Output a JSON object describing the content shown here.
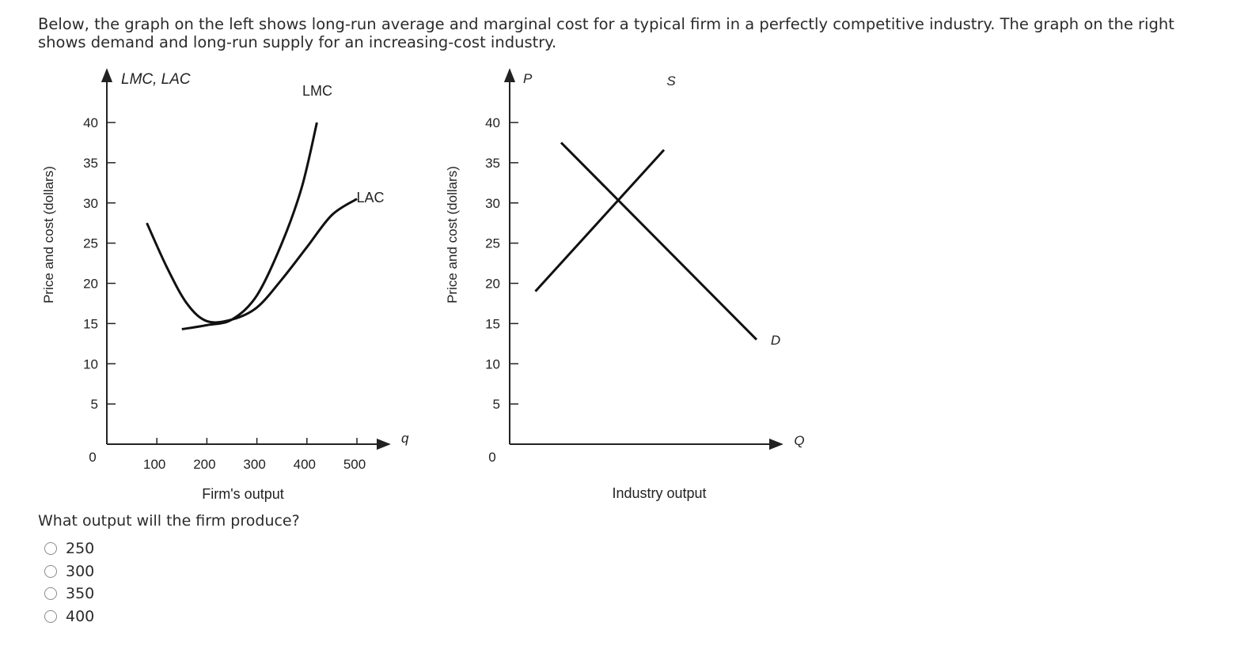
{
  "question": {
    "intro": "Below, the graph on the left shows long-run average and marginal cost for a typical firm in a perfectly competitive industry. The graph on the right shows demand and long-run supply for an increasing-cost industry.",
    "prompt": "What output will the firm produce?",
    "options": [
      "250",
      "300",
      "350",
      "400"
    ]
  },
  "chart_data": [
    {
      "type": "line",
      "y_axis_top_label": "LMC, LAC",
      "ylabel": "Price and cost (dollars)",
      "xlabel": "Firm's output",
      "x_axis_end_label": "q",
      "origin_label": "0",
      "x_ticks": [
        100,
        200,
        300,
        400,
        500
      ],
      "y_ticks": [
        5,
        10,
        15,
        20,
        25,
        30,
        35,
        40
      ],
      "series": [
        {
          "name": "LMC",
          "points": [
            [
              150,
              14.3
            ],
            [
              200,
              14.8
            ],
            [
              250,
              15.5
            ],
            [
              300,
              18.5
            ],
            [
              350,
              25
            ],
            [
              390,
              32
            ],
            [
              420,
              40
            ]
          ]
        },
        {
          "name": "LAC",
          "points": [
            [
              80,
              27.5
            ],
            [
              120,
              22
            ],
            [
              160,
              17.5
            ],
            [
              200,
              15.3
            ],
            [
              250,
              15.5
            ],
            [
              300,
              17
            ],
            [
              350,
              20.5
            ],
            [
              400,
              24.5
            ],
            [
              450,
              28.5
            ],
            [
              500,
              30.5
            ]
          ]
        }
      ]
    },
    {
      "type": "line",
      "y_axis_top_label": "P",
      "ylabel": "Price and cost (dollars)",
      "xlabel": "Industry output",
      "x_axis_end_label": "Q",
      "origin_label": "0",
      "y_ticks": [
        5,
        10,
        15,
        20,
        25,
        30,
        35,
        40
      ],
      "series": [
        {
          "name": "S",
          "points": [
            [
              0.5,
              19
            ],
            [
              3.0,
              36.6
            ]
          ]
        },
        {
          "name": "D",
          "points": [
            [
              1.0,
              37.5
            ],
            [
              4.8,
              13
            ]
          ]
        }
      ]
    }
  ]
}
